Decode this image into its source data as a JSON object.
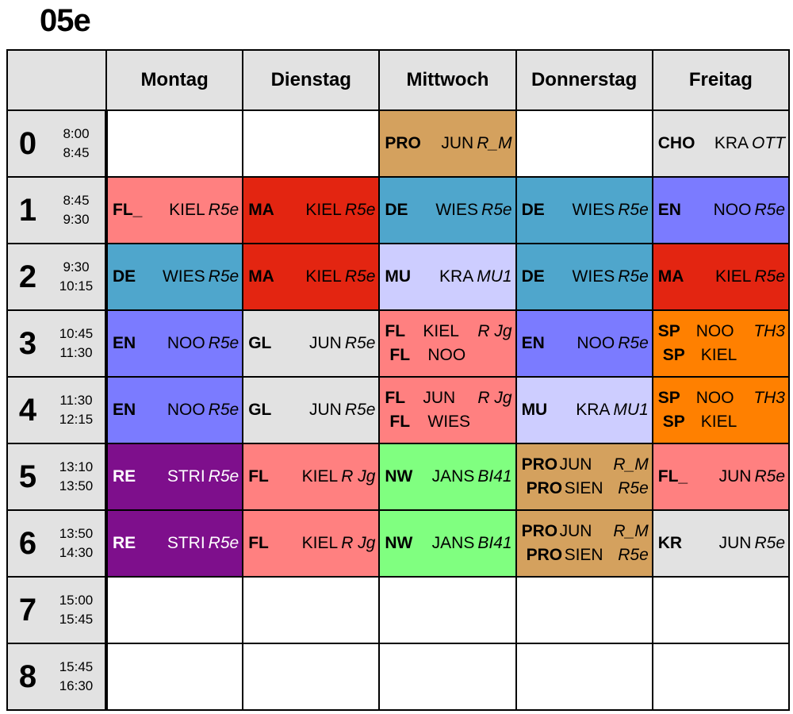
{
  "class_name": "05e",
  "days": [
    "Montag",
    "Dienstag",
    "Mittwoch",
    "Donnerstag",
    "Freitag"
  ],
  "colors": {
    "empty": "#ffffff",
    "gray": "#e2e2e2",
    "tan": "#d4a15e",
    "pink": "#ff8080",
    "red": "#e32511",
    "teal": "#4fa6cc",
    "blue": "#7b7bff",
    "lavender": "#cdcdff",
    "orange": "#ff8000",
    "purple": "#7e0f8c",
    "green": "#80ff80"
  },
  "periods": [
    {
      "num": "0",
      "start": "8:00",
      "end": "8:45"
    },
    {
      "num": "1",
      "start": "8:45",
      "end": "9:30"
    },
    {
      "num": "2",
      "start": "9:30",
      "end": "10:15"
    },
    {
      "num": "3",
      "start": "10:45",
      "end": "11:30"
    },
    {
      "num": "4",
      "start": "11:30",
      "end": "12:15"
    },
    {
      "num": "5",
      "start": "13:10",
      "end": "13:50"
    },
    {
      "num": "6",
      "start": "13:50",
      "end": "14:30"
    },
    {
      "num": "7",
      "start": "15:00",
      "end": "15:45"
    },
    {
      "num": "8",
      "start": "15:45",
      "end": "16:30"
    }
  ],
  "schedule": [
    [
      {
        "color": "empty",
        "entries": []
      },
      {
        "color": "empty",
        "entries": []
      },
      {
        "color": "tan",
        "entries": [
          {
            "subject": "PRO",
            "teacher": "JUN",
            "room": "R_M"
          }
        ]
      },
      {
        "color": "empty",
        "entries": []
      },
      {
        "color": "gray",
        "entries": [
          {
            "subject": "CHO",
            "teacher": "KRA",
            "room": "OTT"
          }
        ]
      }
    ],
    [
      {
        "color": "pink",
        "entries": [
          {
            "subject": "FL_",
            "teacher": "KIEL",
            "room": "R5e"
          }
        ]
      },
      {
        "color": "red",
        "entries": [
          {
            "subject": "MA",
            "teacher": "KIEL",
            "room": "R5e"
          }
        ]
      },
      {
        "color": "teal",
        "entries": [
          {
            "subject": "DE",
            "teacher": "WIES",
            "room": "R5e"
          }
        ]
      },
      {
        "color": "teal",
        "entries": [
          {
            "subject": "DE",
            "teacher": "WIES",
            "room": "R5e"
          }
        ]
      },
      {
        "color": "blue",
        "entries": [
          {
            "subject": "EN",
            "teacher": "NOO",
            "room": "R5e"
          }
        ]
      }
    ],
    [
      {
        "color": "teal",
        "entries": [
          {
            "subject": "DE",
            "teacher": "WIES",
            "room": "R5e"
          }
        ]
      },
      {
        "color": "red",
        "entries": [
          {
            "subject": "MA",
            "teacher": "KIEL",
            "room": "R5e"
          }
        ]
      },
      {
        "color": "lavender",
        "entries": [
          {
            "subject": "MU",
            "teacher": "KRA",
            "room": "MU1"
          }
        ]
      },
      {
        "color": "teal",
        "entries": [
          {
            "subject": "DE",
            "teacher": "WIES",
            "room": "R5e"
          }
        ]
      },
      {
        "color": "red",
        "entries": [
          {
            "subject": "MA",
            "teacher": "KIEL",
            "room": "R5e"
          }
        ]
      }
    ],
    [
      {
        "color": "blue",
        "entries": [
          {
            "subject": "EN",
            "teacher": "NOO",
            "room": "R5e"
          }
        ]
      },
      {
        "color": "gray",
        "entries": [
          {
            "subject": "GL",
            "teacher": "JUN",
            "room": "R5e"
          }
        ]
      },
      {
        "color": "pink",
        "entries": [
          {
            "subject": "FL",
            "teacher": "KIEL",
            "room": "R Jg"
          },
          {
            "subject": "FL",
            "teacher": "NOO",
            "room": ""
          }
        ]
      },
      {
        "color": "blue",
        "entries": [
          {
            "subject": "EN",
            "teacher": "NOO",
            "room": "R5e"
          }
        ]
      },
      {
        "color": "orange",
        "entries": [
          {
            "subject": "SP",
            "teacher": "NOO",
            "room": "TH3"
          },
          {
            "subject": "SP",
            "teacher": "KIEL",
            "room": ""
          }
        ]
      }
    ],
    [
      {
        "color": "blue",
        "entries": [
          {
            "subject": "EN",
            "teacher": "NOO",
            "room": "R5e"
          }
        ]
      },
      {
        "color": "gray",
        "entries": [
          {
            "subject": "GL",
            "teacher": "JUN",
            "room": "R5e"
          }
        ]
      },
      {
        "color": "pink",
        "entries": [
          {
            "subject": "FL",
            "teacher": "JUN",
            "room": "R Jg"
          },
          {
            "subject": "FL",
            "teacher": "WIES",
            "room": ""
          }
        ]
      },
      {
        "color": "lavender",
        "entries": [
          {
            "subject": "MU",
            "teacher": "KRA",
            "room": "MU1"
          }
        ]
      },
      {
        "color": "orange",
        "entries": [
          {
            "subject": "SP",
            "teacher": "NOO",
            "room": "TH3"
          },
          {
            "subject": "SP",
            "teacher": "KIEL",
            "room": ""
          }
        ]
      }
    ],
    [
      {
        "color": "purple",
        "light_text": true,
        "entries": [
          {
            "subject": "RE",
            "teacher": "STRI",
            "room": "R5e"
          }
        ]
      },
      {
        "color": "pink",
        "entries": [
          {
            "subject": "FL",
            "teacher": "KIEL",
            "room": "R Jg"
          }
        ]
      },
      {
        "color": "green",
        "entries": [
          {
            "subject": "NW",
            "teacher": "JANS",
            "room": "BI41"
          }
        ]
      },
      {
        "color": "tan",
        "entries": [
          {
            "subject": "PRO",
            "teacher": "JUN",
            "room": "R_M"
          },
          {
            "subject": "PRO",
            "teacher": "SIEN",
            "room": "R5e"
          }
        ]
      },
      {
        "color": "pink",
        "entries": [
          {
            "subject": "FL_",
            "teacher": "JUN",
            "room": "R5e"
          }
        ]
      }
    ],
    [
      {
        "color": "purple",
        "light_text": true,
        "entries": [
          {
            "subject": "RE",
            "teacher": "STRI",
            "room": "R5e"
          }
        ]
      },
      {
        "color": "pink",
        "entries": [
          {
            "subject": "FL",
            "teacher": "KIEL",
            "room": "R Jg"
          }
        ]
      },
      {
        "color": "green",
        "entries": [
          {
            "subject": "NW",
            "teacher": "JANS",
            "room": "BI41"
          }
        ]
      },
      {
        "color": "tan",
        "entries": [
          {
            "subject": "PRO",
            "teacher": "JUN",
            "room": "R_M"
          },
          {
            "subject": "PRO",
            "teacher": "SIEN",
            "room": "R5e"
          }
        ]
      },
      {
        "color": "gray",
        "entries": [
          {
            "subject": "KR",
            "teacher": "JUN",
            "room": "R5e"
          }
        ]
      }
    ],
    [
      {
        "color": "empty",
        "entries": []
      },
      {
        "color": "empty",
        "entries": []
      },
      {
        "color": "empty",
        "entries": []
      },
      {
        "color": "empty",
        "entries": []
      },
      {
        "color": "empty",
        "entries": []
      }
    ],
    [
      {
        "color": "empty",
        "entries": []
      },
      {
        "color": "empty",
        "entries": []
      },
      {
        "color": "empty",
        "entries": []
      },
      {
        "color": "empty",
        "entries": []
      },
      {
        "color": "empty",
        "entries": []
      }
    ]
  ]
}
